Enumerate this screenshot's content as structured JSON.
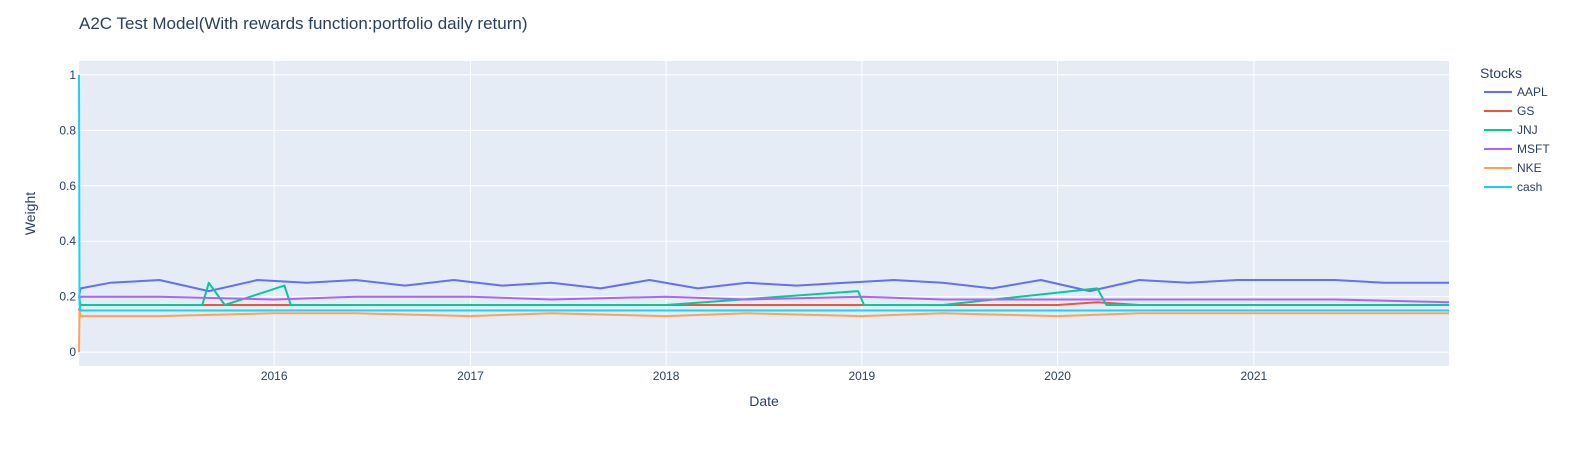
{
  "chart_data": {
    "type": "line",
    "title": "A2C Test Model(With rewards function:portfolio daily return)",
    "xlabel": "Date",
    "ylabel": "Weight",
    "x_range": [
      "2015-01-02",
      "2021-12-31"
    ],
    "ylim": [
      -0.05,
      1.05
    ],
    "x_ticks": [
      "2016",
      "2017",
      "2018",
      "2019",
      "2020",
      "2021"
    ],
    "y_ticks": [
      "0",
      "0.2",
      "0.4",
      "0.6",
      "0.8",
      "1"
    ],
    "legend_title": "Stocks",
    "legend_position": "right",
    "grid": true,
    "colors": {
      "plot_bg": "#e5ecf6",
      "grid": "#ffffff",
      "text": "#2a3f5f"
    },
    "series": [
      {
        "name": "AAPL",
        "color": "#636efa",
        "x": [
          "2015-01-02",
          "2015-01-05",
          "2015-03-01",
          "2015-06-01",
          "2015-09-01",
          "2015-12-01",
          "2016-03-01",
          "2016-06-01",
          "2016-09-01",
          "2016-12-01",
          "2017-03-01",
          "2017-06-01",
          "2017-09-01",
          "2017-12-01",
          "2018-03-01",
          "2018-06-01",
          "2018-09-01",
          "2018-12-01",
          "2019-03-01",
          "2019-06-01",
          "2019-09-01",
          "2019-12-01",
          "2020-03-01",
          "2020-06-01",
          "2020-09-01",
          "2020-12-01",
          "2021-03-01",
          "2021-06-01",
          "2021-09-01",
          "2021-12-31"
        ],
        "y": [
          0.2,
          0.23,
          0.25,
          0.26,
          0.22,
          0.26,
          0.25,
          0.26,
          0.24,
          0.26,
          0.24,
          0.25,
          0.23,
          0.26,
          0.23,
          0.25,
          0.24,
          0.25,
          0.26,
          0.25,
          0.23,
          0.26,
          0.22,
          0.26,
          0.25,
          0.26,
          0.26,
          0.26,
          0.25,
          0.25
        ]
      },
      {
        "name": "GS",
        "color": "#ef553b",
        "x": [
          "2015-01-02",
          "2015-01-05",
          "2015-06-01",
          "2016-01-01",
          "2016-06-01",
          "2017-01-01",
          "2017-06-01",
          "2018-01-01",
          "2018-06-01",
          "2019-01-01",
          "2019-06-01",
          "2020-01-01",
          "2020-03-15",
          "2020-06-01",
          "2021-01-01",
          "2021-06-01",
          "2021-12-31"
        ],
        "y": [
          0.15,
          0.17,
          0.17,
          0.17,
          0.17,
          0.17,
          0.17,
          0.17,
          0.17,
          0.17,
          0.17,
          0.17,
          0.18,
          0.17,
          0.17,
          0.17,
          0.17
        ]
      },
      {
        "name": "JNJ",
        "color": "#00cc96",
        "x": [
          "2015-01-02",
          "2015-01-05",
          "2015-08-20",
          "2015-09-01",
          "2015-10-01",
          "2016-01-20",
          "2016-02-01",
          "2016-06-01",
          "2016-10-01",
          "2017-01-01",
          "2018-01-01",
          "2018-12-25",
          "2019-01-05",
          "2019-06-01",
          "2020-03-15",
          "2020-04-01",
          "2021-01-01",
          "2021-12-31"
        ],
        "y": [
          0.2,
          0.17,
          0.17,
          0.25,
          0.17,
          0.24,
          0.17,
          0.17,
          0.17,
          0.17,
          0.17,
          0.22,
          0.17,
          0.17,
          0.23,
          0.17,
          0.17,
          0.17
        ]
      },
      {
        "name": "MSFT",
        "color": "#ab63fa",
        "x": [
          "2015-01-02",
          "2015-01-05",
          "2015-06-01",
          "2016-01-01",
          "2016-06-01",
          "2017-01-01",
          "2017-06-01",
          "2018-01-01",
          "2018-06-01",
          "2019-01-01",
          "2019-06-01",
          "2020-01-01",
          "2020-06-01",
          "2021-01-01",
          "2021-06-01",
          "2021-12-31"
        ],
        "y": [
          0.19,
          0.2,
          0.2,
          0.19,
          0.2,
          0.2,
          0.19,
          0.2,
          0.19,
          0.2,
          0.19,
          0.19,
          0.19,
          0.19,
          0.19,
          0.18
        ]
      },
      {
        "name": "NKE",
        "color": "#ffa15a",
        "x": [
          "2015-01-02",
          "2015-01-03",
          "2015-01-05",
          "2015-06-01",
          "2016-01-01",
          "2016-06-01",
          "2017-01-01",
          "2017-06-01",
          "2018-01-01",
          "2018-06-01",
          "2019-01-01",
          "2019-06-01",
          "2020-01-01",
          "2020-06-01",
          "2021-01-01",
          "2021-06-01",
          "2021-12-31"
        ],
        "y": [
          0.0,
          0.15,
          0.13,
          0.13,
          0.14,
          0.14,
          0.13,
          0.14,
          0.13,
          0.14,
          0.13,
          0.14,
          0.13,
          0.14,
          0.14,
          0.14,
          0.14
        ]
      },
      {
        "name": "cash",
        "color": "#19d3f3",
        "x": [
          "2015-01-02",
          "2015-01-03",
          "2015-01-05",
          "2015-06-01",
          "2016-01-01",
          "2016-06-01",
          "2017-01-01",
          "2017-06-01",
          "2018-01-01",
          "2018-06-01",
          "2019-01-01",
          "2019-06-01",
          "2020-01-01",
          "2020-06-01",
          "2021-01-01",
          "2021-06-01",
          "2021-12-31"
        ],
        "y": [
          1.0,
          0.17,
          0.15,
          0.15,
          0.15,
          0.15,
          0.15,
          0.15,
          0.15,
          0.15,
          0.15,
          0.15,
          0.15,
          0.15,
          0.15,
          0.15,
          0.15
        ]
      }
    ]
  }
}
